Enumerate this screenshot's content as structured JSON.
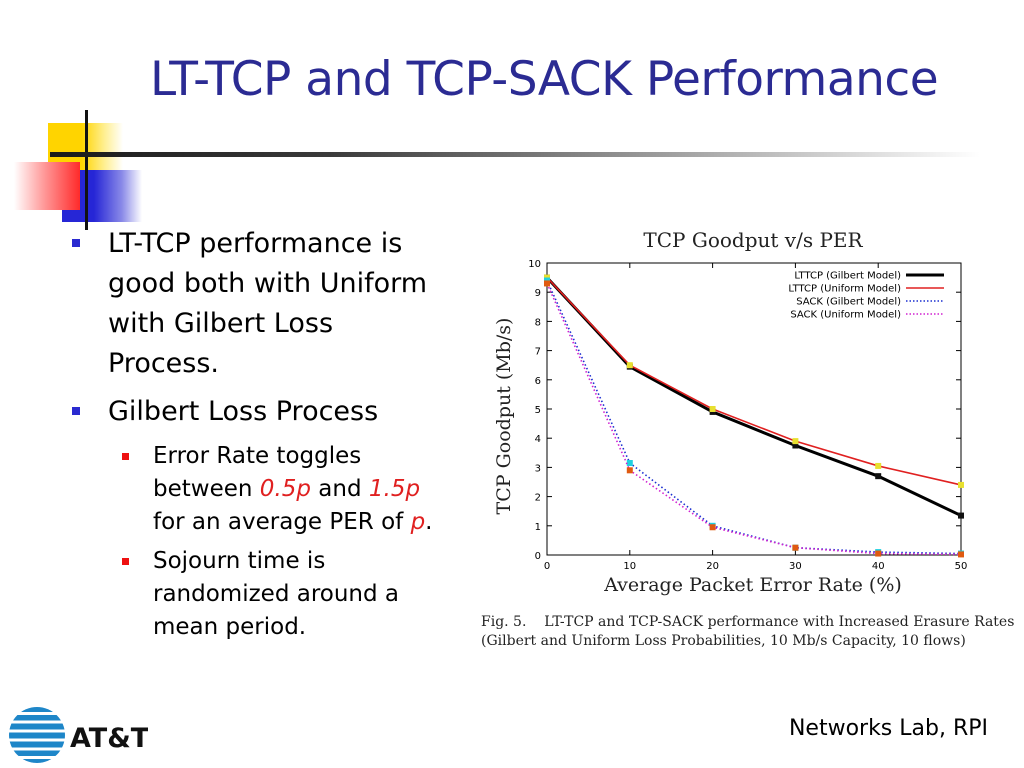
{
  "slide": {
    "title": "LT-TCP and TCP-SACK Performance",
    "footer": "Networks Lab, RPI",
    "logo_text": "AT&T"
  },
  "bullets": {
    "b1": {
      "line1": "LT-TCP performance is",
      "line2": "good both with Uniform",
      "line3": "with Gilbert Loss",
      "line4": "Process."
    },
    "b2": {
      "text": "Gilbert Loss Process"
    },
    "sub1": {
      "line1": "Error Rate toggles",
      "between": "between ",
      "v1": "0.5p",
      "and": " and ",
      "v2": "1.5p",
      "line3a": "for an average PER of ",
      "p": "p",
      "period": "."
    },
    "sub2": {
      "line1": "Sojourn time is",
      "line2": "randomized around a",
      "line3": "mean period."
    }
  },
  "caption": {
    "line1": "Fig. 5.    LT-TCP and TCP-SACK performance with Increased Erasure Rates",
    "line2": "(Gilbert and Uniform Loss Probabilities, 10 Mb/s Capacity, 10 flows)"
  },
  "chart_data": {
    "type": "line",
    "title": "TCP Goodput v/s PER",
    "xlabel": "Average Packet Error Rate (%)",
    "ylabel": "TCP Goodput (Mb/s)",
    "xlim": [
      0,
      50
    ],
    "ylim": [
      0,
      10
    ],
    "x_ticks": [
      "0",
      "10",
      "20",
      "30",
      "40",
      "50"
    ],
    "y_ticks": [
      "0",
      "1",
      "2",
      "3",
      "4",
      "5",
      "6",
      "7",
      "8",
      "9",
      "10"
    ],
    "legend_position": "top-right",
    "x": [
      0,
      10,
      20,
      30,
      40,
      50
    ],
    "series": [
      {
        "name": "LTTCP (Gilbert Model)",
        "values": [
          9.5,
          6.45,
          4.9,
          3.75,
          2.7,
          1.35
        ],
        "color": "#000000",
        "style": "solid-thick"
      },
      {
        "name": "LTTCP (Uniform Model)",
        "values": [
          9.5,
          6.5,
          5.0,
          3.9,
          3.05,
          2.4
        ],
        "color": "#e02020",
        "style": "solid"
      },
      {
        "name": "SACK (Gilbert Model)",
        "values": [
          9.4,
          3.15,
          1.0,
          0.25,
          0.1,
          0.05
        ],
        "color": "#1a2fd0",
        "style": "dotted"
      },
      {
        "name": "SACK (Uniform Model)",
        "values": [
          9.3,
          2.9,
          0.95,
          0.25,
          0.05,
          0.02
        ],
        "color": "#d020d0",
        "style": "dotted"
      }
    ]
  }
}
